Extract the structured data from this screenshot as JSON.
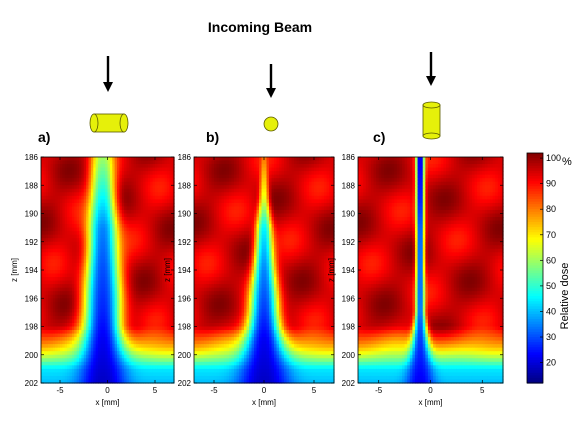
{
  "title": "Incoming Beam",
  "chart_data": [
    {
      "type": "heatmap",
      "panel_label": "a)",
      "orientation_icon": "cylinder-horizontal-icon",
      "xlabel": "x  [mm]",
      "ylabel": "z  [mm]",
      "xlim": [
        -7,
        7
      ],
      "ylim": [
        186,
        202
      ],
      "x_ticks": [
        -5,
        0,
        5
      ],
      "y_ticks": [
        186,
        188,
        190,
        192,
        194,
        196,
        198,
        200,
        202
      ],
      "y_inverted": true,
      "background_dose": 95,
      "low_dose": 15,
      "beam_center_x": -0.5,
      "beam_profile": [
        {
          "z": 186,
          "half_width": 1.2,
          "dose": 60
        },
        {
          "z": 189,
          "half_width": 1.4,
          "dose": 45
        },
        {
          "z": 191,
          "half_width": 1.6,
          "dose": 35
        },
        {
          "z": 194,
          "half_width": 1.8,
          "dose": 30
        },
        {
          "z": 197,
          "half_width": 2.0,
          "dose": 26
        },
        {
          "z": 199,
          "half_width": 2.2,
          "dose": 22
        },
        {
          "z": 202,
          "half_width": 2.5,
          "dose": 18
        }
      ],
      "surface_z": 199,
      "surface_dose": 50
    },
    {
      "type": "heatmap",
      "panel_label": "b)",
      "orientation_icon": "circle-icon",
      "xlabel": "x  [mm]",
      "ylabel": "z  [mm]",
      "xlim": [
        -7,
        7
      ],
      "ylim": [
        186,
        202
      ],
      "x_ticks": [
        -5,
        0,
        5
      ],
      "y_ticks": [
        186,
        188,
        190,
        192,
        194,
        196,
        198,
        200,
        202
      ],
      "y_inverted": true,
      "background_dose": 95,
      "low_dose": 15,
      "beam_center_x": 0,
      "beam_profile": [
        {
          "z": 186,
          "half_width": 0.3,
          "dose": 80
        },
        {
          "z": 189,
          "half_width": 0.5,
          "dose": 65
        },
        {
          "z": 191,
          "half_width": 0.8,
          "dose": 45
        },
        {
          "z": 194,
          "half_width": 1.1,
          "dose": 35
        },
        {
          "z": 197,
          "half_width": 1.5,
          "dose": 28
        },
        {
          "z": 199,
          "half_width": 2.0,
          "dose": 22
        },
        {
          "z": 202,
          "half_width": 2.6,
          "dose": 18
        }
      ],
      "surface_z": 199,
      "surface_dose": 50
    },
    {
      "type": "heatmap",
      "panel_label": "c)",
      "orientation_icon": "cylinder-vertical-icon",
      "xlabel": "x  [mm]",
      "ylabel": "z  [mm]",
      "xlim": [
        -7,
        7
      ],
      "ylim": [
        186,
        202
      ],
      "x_ticks": [
        -5,
        0,
        5
      ],
      "y_ticks": [
        186,
        188,
        190,
        192,
        194,
        196,
        198,
        200,
        202
      ],
      "y_inverted": true,
      "background_dose": 95,
      "low_dose": 15,
      "beam_center_x": -1,
      "beam_profile": [
        {
          "z": 186,
          "half_width": 0.4,
          "dose": 18
        },
        {
          "z": 189,
          "half_width": 0.4,
          "dose": 22
        },
        {
          "z": 191,
          "half_width": 0.4,
          "dose": 28
        },
        {
          "z": 194,
          "half_width": 0.4,
          "dose": 30
        },
        {
          "z": 197,
          "half_width": 0.45,
          "dose": 32
        },
        {
          "z": 199,
          "half_width": 0.8,
          "dose": 28
        },
        {
          "z": 202,
          "half_width": 1.4,
          "dose": 22
        }
      ],
      "surface_z": 199,
      "surface_dose": 50
    }
  ],
  "colorbar": {
    "label": "Relative dose",
    "unit": "%",
    "min": 12,
    "max": 102,
    "ticks": [
      20,
      30,
      40,
      50,
      60,
      70,
      80,
      90,
      100
    ],
    "colormap": "jet"
  },
  "colors": {
    "icon_fill": "#e6f00a",
    "icon_edge": "#5a5a00",
    "arrow": "#000000"
  }
}
